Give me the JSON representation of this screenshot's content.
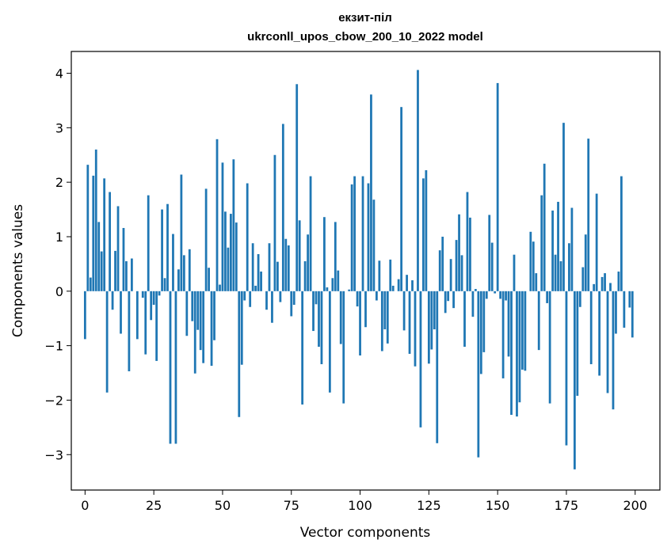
{
  "chart_data": {
    "type": "bar",
    "title_line1": "екзит-пiл",
    "title_line2": "ukrconll_upos_cbow_200_10_2022 model",
    "xlabel": "Vector components",
    "ylabel": "Components values",
    "xlim": [
      -5,
      209
    ],
    "ylim": [
      -3.65,
      4.4
    ],
    "xticks": [
      0,
      25,
      50,
      75,
      100,
      125,
      150,
      175,
      200
    ],
    "xtick_labels": [
      "0",
      "25",
      "50",
      "75",
      "100",
      "125",
      "150",
      "175",
      "200"
    ],
    "yticks": [
      -3,
      -2,
      -1,
      0,
      1,
      2,
      3,
      4
    ],
    "ytick_labels": [
      "−3",
      "−2",
      "−1",
      "0",
      "1",
      "2",
      "3",
      "4"
    ],
    "bar_color": "#1f77b4",
    "grid": false,
    "values": [
      -0.88,
      2.32,
      0.25,
      2.12,
      2.6,
      1.27,
      0.73,
      2.07,
      -1.86,
      1.82,
      -0.34,
      0.74,
      1.56,
      -0.78,
      1.16,
      0.55,
      -1.47,
      0.6,
      0.0,
      -0.88,
      0.0,
      -0.12,
      -1.16,
      1.76,
      -0.53,
      -0.25,
      -1.28,
      -0.08,
      1.5,
      0.24,
      1.6,
      -2.8,
      1.05,
      -2.8,
      0.4,
      2.14,
      0.66,
      -0.82,
      0.77,
      -0.55,
      -1.51,
      -0.71,
      -1.08,
      -1.32,
      1.88,
      0.43,
      -1.37,
      -0.9,
      2.79,
      0.12,
      2.36,
      1.46,
      0.8,
      1.42,
      2.42,
      1.26,
      -2.31,
      -1.35,
      -0.17,
      1.98,
      -0.29,
      0.88,
      0.1,
      0.68,
      0.36,
      0.0,
      -0.34,
      0.88,
      -0.58,
      2.5,
      0.54,
      -0.2,
      3.07,
      0.96,
      0.84,
      -0.46,
      -0.25,
      3.8,
      1.3,
      -2.08,
      0.55,
      1.04,
      2.11,
      -0.73,
      -0.24,
      -1.02,
      -1.34,
      1.36,
      0.07,
      -1.86,
      0.24,
      1.27,
      0.38,
      -0.97,
      -2.06,
      0.0,
      0.03,
      1.96,
      2.11,
      -0.28,
      -1.18,
      2.11,
      -0.66,
      1.98,
      3.61,
      1.68,
      -0.17,
      0.56,
      -1.1,
      -0.7,
      -0.96,
      0.58,
      0.1,
      0.0,
      0.22,
      3.38,
      -0.72,
      0.3,
      -1.15,
      0.2,
      -1.38,
      4.06,
      -2.5,
      2.07,
      2.22,
      -1.33,
      -1.07,
      -0.7,
      -2.79,
      0.75,
      1.0,
      -0.4,
      -0.18,
      0.59,
      -0.31,
      0.94,
      1.41,
      0.66,
      -1.02,
      1.82,
      1.35,
      -0.47,
      0.04,
      -3.05,
      -1.52,
      -1.12,
      -0.14,
      1.4,
      0.89,
      -0.04,
      3.82,
      -0.14,
      -1.6,
      -0.17,
      -1.2,
      -2.27,
      0.67,
      -2.3,
      -2.04,
      -1.44,
      -1.46,
      0.0,
      1.09,
      0.91,
      0.33,
      -1.08,
      1.76,
      2.34,
      -0.22,
      -2.06,
      1.48,
      0.67,
      1.64,
      0.55,
      3.09,
      -2.83,
      0.88,
      1.53,
      -3.27,
      -1.92,
      -0.29,
      0.44,
      1.04,
      2.8,
      -1.34,
      0.13,
      1.79,
      -1.55,
      0.26,
      0.33,
      -1.87,
      0.15,
      -2.17,
      -0.78,
      0.36,
      2.11,
      -0.67,
      0.0,
      -0.3,
      -0.85
    ]
  }
}
